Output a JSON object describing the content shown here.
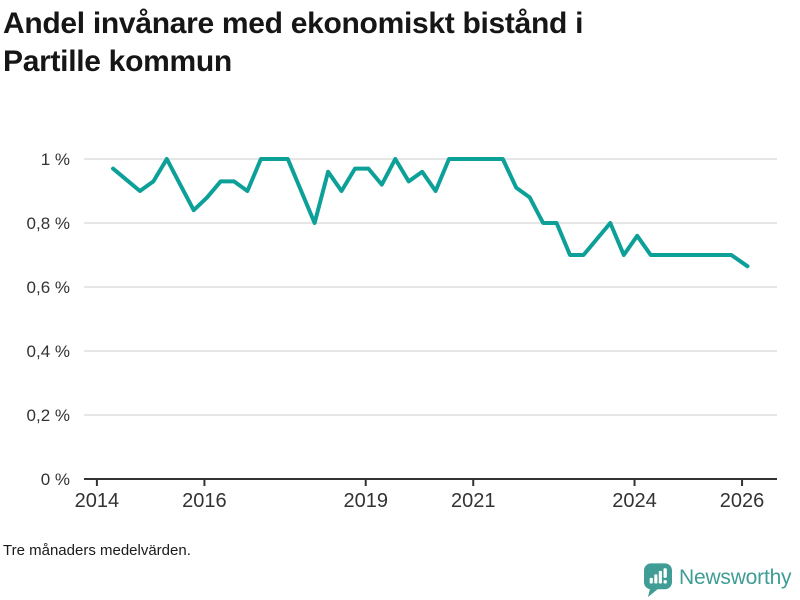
{
  "header": {
    "title_lines": [
      "Andel invånare med ekonomiskt bistånd i",
      "Partille kommun"
    ]
  },
  "chart_data": {
    "type": "line",
    "title": "Andel invånare med ekonomiskt bistånd i Partille kommun",
    "xlabel": "",
    "ylabel": "",
    "unit": "percent of inhabitants",
    "grid": "horizontal",
    "legend": "none",
    "xlim": [
      2013.76,
      2026.65
    ],
    "ylim": [
      0,
      1
    ],
    "x_ticks": [
      {
        "value": 2014,
        "label": "2014"
      },
      {
        "value": 2016,
        "label": "2016"
      },
      {
        "value": 2019,
        "label": "2019"
      },
      {
        "value": 2021,
        "label": "2021"
      },
      {
        "value": 2024,
        "label": "2024"
      },
      {
        "value": 2026,
        "label": "2026"
      }
    ],
    "y_ticks": [
      {
        "value": 0,
        "label": "0 %"
      },
      {
        "value": 0.2,
        "label": "0,2 %"
      },
      {
        "value": 0.4,
        "label": "0,4 %"
      },
      {
        "value": 0.6,
        "label": "0,6 %"
      },
      {
        "value": 0.8,
        "label": "0,8 %"
      },
      {
        "value": 1,
        "label": "1 %"
      }
    ],
    "series": [
      {
        "name": "Partille kommun",
        "points": [
          [
            2014.3,
            0.97
          ],
          [
            2014.55,
            0.935
          ],
          [
            2014.8,
            0.9
          ],
          [
            2015.05,
            0.93
          ],
          [
            2015.3,
            1.0
          ],
          [
            2015.55,
            0.92
          ],
          [
            2015.8,
            0.84
          ],
          [
            2016.05,
            0.88
          ],
          [
            2016.3,
            0.93
          ],
          [
            2016.55,
            0.93
          ],
          [
            2016.8,
            0.9
          ],
          [
            2017.05,
            1.0
          ],
          [
            2017.3,
            1.0
          ],
          [
            2017.55,
            1.0
          ],
          [
            2017.8,
            0.9
          ],
          [
            2018.05,
            0.8
          ],
          [
            2018.3,
            0.96
          ],
          [
            2018.55,
            0.9
          ],
          [
            2018.8,
            0.97
          ],
          [
            2019.05,
            0.97
          ],
          [
            2019.3,
            0.92
          ],
          [
            2019.55,
            1.0
          ],
          [
            2019.8,
            0.93
          ],
          [
            2020.05,
            0.96
          ],
          [
            2020.3,
            0.9
          ],
          [
            2020.55,
            1.0
          ],
          [
            2020.8,
            1.0
          ],
          [
            2021.05,
            1.0
          ],
          [
            2021.3,
            1.0
          ],
          [
            2021.55,
            1.0
          ],
          [
            2021.8,
            0.91
          ],
          [
            2022.05,
            0.88
          ],
          [
            2022.3,
            0.8
          ],
          [
            2022.55,
            0.8
          ],
          [
            2022.8,
            0.7
          ],
          [
            2023.05,
            0.7
          ],
          [
            2023.3,
            0.75
          ],
          [
            2023.55,
            0.8
          ],
          [
            2023.8,
            0.7
          ],
          [
            2024.05,
            0.76
          ],
          [
            2024.3,
            0.7
          ],
          [
            2024.55,
            0.7
          ],
          [
            2024.8,
            0.7
          ],
          [
            2025.05,
            0.7
          ],
          [
            2025.3,
            0.7
          ],
          [
            2025.55,
            0.7
          ],
          [
            2025.8,
            0.7
          ],
          [
            2026.1,
            0.665
          ]
        ]
      }
    ]
  },
  "footer": {
    "note": "Tre månaders medelvärden.",
    "brand": "Newsworthy"
  },
  "colors": {
    "line": "#0da098",
    "grid": "#e2e2e2",
    "axis": "#333333",
    "tick_text": "#333333",
    "title_text": "#161616",
    "brand": "#3f9d95"
  }
}
